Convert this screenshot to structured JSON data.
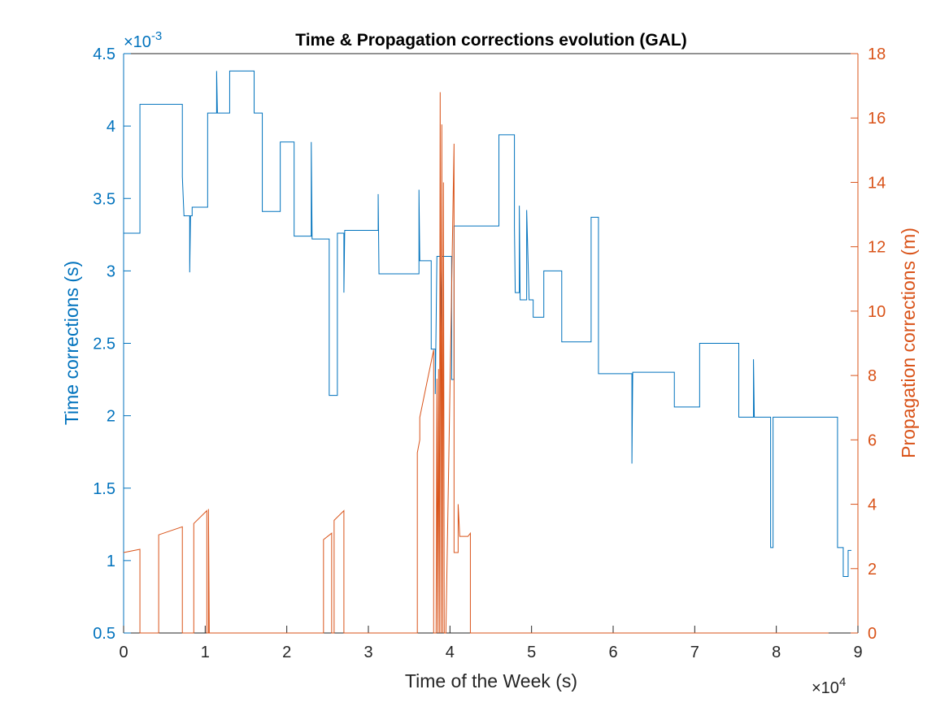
{
  "chart_data": {
    "type": "line",
    "title": "Time & Propagation corrections evolution (GAL)",
    "x_label": "Time of the Week (s)",
    "y_label": "Time corrections (s)",
    "y2_label": "Propagation corrections (m)",
    "x_multiplier": {
      "base": "×10",
      "power": "4"
    },
    "y_multiplier": {
      "base": "×10",
      "power": "-3"
    },
    "xlim": [
      0,
      9
    ],
    "xticks": [
      0,
      1,
      2,
      3,
      4,
      5,
      6,
      7,
      8,
      9
    ],
    "ylim": [
      0.5,
      4.5
    ],
    "yticks": [
      0.5,
      1,
      1.5,
      2,
      2.5,
      3,
      3.5,
      4,
      4.5
    ],
    "y2lim": [
      0,
      18
    ],
    "y2ticks": [
      0,
      2,
      4,
      6,
      8,
      10,
      12,
      14,
      16,
      18
    ],
    "grid": false,
    "series": [
      {
        "color": "#0072BD",
        "axis": "y",
        "x": [
          0,
          0.2,
          0.2,
          0.72,
          0.72,
          0.74,
          0.81,
          0.81,
          0.82,
          0.84,
          0.84,
          1.03,
          1.03,
          1.14,
          1.14,
          1.15,
          1.3,
          1.3,
          1.6,
          1.6,
          1.7,
          1.7,
          1.92,
          1.92,
          2.09,
          2.09,
          2.3,
          2.3,
          2.31,
          2.52,
          2.52,
          2.62,
          2.62,
          2.7,
          2.7,
          2.71,
          3.12,
          3.12,
          3.13,
          3.62,
          3.62,
          3.63,
          3.77,
          3.77,
          3.82,
          3.82,
          3.84,
          3.88,
          3.88,
          3.9,
          4.02,
          4.02,
          4.05,
          4.05,
          4.6,
          4.6,
          4.79,
          4.79,
          4.8,
          4.85,
          4.85,
          4.86,
          4.94,
          4.94,
          4.97,
          5.02,
          5.02,
          5.15,
          5.15,
          5.37,
          5.37,
          5.73,
          5.73,
          5.82,
          5.82,
          6.23,
          6.23,
          6.24,
          6.75,
          6.75,
          7.06,
          7.06,
          7.54,
          7.54,
          7.72,
          7.72,
          7.73,
          7.93,
          7.93,
          7.96,
          7.96,
          8.75,
          8.75,
          8.82,
          8.82,
          8.88,
          8.88,
          8.92
        ],
        "values": [
          3.26,
          3.26,
          4.15,
          4.15,
          3.65,
          3.38,
          3.38,
          2.99,
          3.38,
          3.38,
          3.44,
          3.44,
          4.09,
          4.09,
          4.38,
          4.09,
          4.09,
          4.38,
          4.38,
          4.09,
          4.09,
          3.41,
          3.41,
          3.89,
          3.89,
          3.24,
          3.24,
          3.89,
          3.22,
          3.22,
          2.14,
          2.14,
          3.26,
          3.26,
          2.85,
          3.28,
          3.28,
          3.53,
          2.98,
          2.98,
          3.56,
          3.07,
          3.07,
          2.46,
          2.46,
          2.15,
          3.1,
          3.1,
          2.5,
          3.1,
          3.1,
          2.25,
          2.25,
          3.31,
          3.31,
          3.94,
          3.94,
          3.3,
          2.85,
          2.85,
          3.45,
          2.8,
          2.8,
          3.42,
          2.8,
          2.8,
          2.68,
          2.68,
          3.0,
          3.0,
          2.51,
          2.51,
          3.37,
          3.37,
          2.29,
          2.29,
          1.67,
          2.3,
          2.3,
          2.06,
          2.06,
          2.5,
          2.5,
          1.99,
          1.99,
          2.39,
          1.99,
          1.99,
          1.09,
          1.09,
          1.99,
          1.99,
          1.09,
          1.09,
          0.89,
          0.89,
          1.07,
          1.07
        ]
      },
      {
        "color": "#D95319",
        "axis": "y2",
        "x": [
          0,
          0.2,
          0.2,
          0.43,
          0.43,
          0.72,
          0.72,
          0.86,
          0.86,
          1.02,
          1.02,
          1.04,
          1.04,
          1.05,
          2.45,
          2.45,
          2.55,
          2.55,
          2.58,
          2.58,
          2.7,
          2.7,
          3.6,
          3.6,
          3.63,
          3.63,
          3.8,
          3.8,
          3.83,
          3.84,
          3.85,
          3.86,
          3.87,
          3.88,
          3.89,
          3.9,
          3.91,
          3.92,
          3.93,
          3.95,
          4.05,
          4.05,
          4.1,
          4.1,
          4.12,
          4.22,
          4.25,
          4.25,
          8.64
        ],
        "values": [
          2.5,
          2.6,
          0,
          0,
          3.05,
          3.3,
          0,
          0,
          3.4,
          3.8,
          0,
          0,
          3.85,
          0,
          0,
          2.9,
          3.1,
          0,
          0,
          3.5,
          3.8,
          0,
          0,
          5.6,
          6.0,
          6.7,
          8.8,
          0,
          0,
          7.9,
          0,
          8.2,
          0,
          16.8,
          0,
          15.8,
          0,
          14.0,
          0,
          0,
          15.2,
          2.5,
          2.5,
          4.0,
          3.0,
          3.0,
          3.1,
          0,
          0
        ]
      }
    ]
  }
}
